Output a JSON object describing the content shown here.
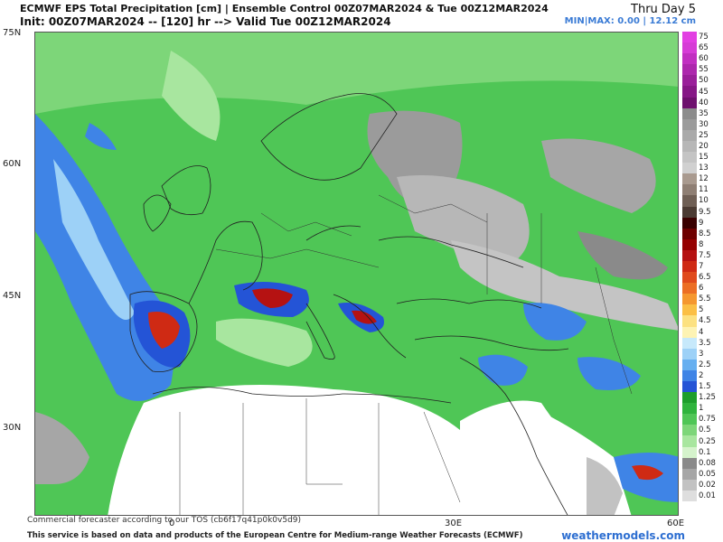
{
  "header": {
    "title_line1": "ECMWF EPS Total Precipitation [cm] | Ensemble Control 00Z07MAR2024 & Tue 00Z12MAR2024",
    "title_line2": "Init: 00Z07MAR2024 -- [120] hr --> Valid Tue 00Z12MAR2024",
    "day_label": "Thru Day 5",
    "minmax": "MIN|MAX: 0.00 | 12.12 cm"
  },
  "axes": {
    "lat_labels": [
      "75N",
      "60N",
      "45N",
      "30N"
    ],
    "lon_labels": [
      "0",
      "30E",
      "60E"
    ]
  },
  "legend": {
    "values": [
      "75",
      "65",
      "60",
      "55",
      "50",
      "45",
      "40",
      "35",
      "30",
      "25",
      "20",
      "15",
      "13",
      "12",
      "11",
      "10",
      "9.5",
      "9",
      "8.5",
      "8",
      "7.5",
      "7",
      "6.5",
      "6",
      "5.5",
      "5",
      "4.5",
      "4",
      "3.5",
      "3",
      "2.5",
      "2",
      "1.5",
      "1.25",
      "1",
      "0.75",
      "0.5",
      "0.25",
      "0.1",
      "0.08",
      "0.05",
      "0.02",
      "0.01"
    ],
    "colors": [
      "#e23fe2",
      "#d63cd6",
      "#c12fc1",
      "#ad27ad",
      "#9a1f9a",
      "#861786",
      "#6e116e",
      "#8c8c8c",
      "#9b9b9b",
      "#aaaaaa",
      "#b7b7b7",
      "#c4c4c4",
      "#d0d0d0",
      "#a99a8f",
      "#8f7f74",
      "#6f5f55",
      "#4b3b33",
      "#3a0000",
      "#6e0000",
      "#950000",
      "#b51212",
      "#cf2a14",
      "#e04a1c",
      "#ec6e24",
      "#f5972f",
      "#fbbf45",
      "#fce181",
      "#fdf3b4",
      "#c7e9fb",
      "#9dd1f7",
      "#66aff0",
      "#3f84e6",
      "#2454d6",
      "#1d9e2c",
      "#2fb43d",
      "#4fc656",
      "#7dd679",
      "#a8e69f",
      "#d5f3cc",
      "#8a8a8a",
      "#a6a6a6",
      "#c2c2c2",
      "#dedede"
    ]
  },
  "footer": {
    "disclaimer": "Commercial forecaster according to our TOS (cb6f17q41p0k0v5d9)",
    "source_note": "This service is based on data and products of the European Centre for Medium-range Weather Forecasts (ECMWF)",
    "brand": "weathermodels.com"
  },
  "palette": {
    "ocean_base": "#52c25a",
    "land_dry": "#ffffff",
    "border_color": "#222222"
  }
}
